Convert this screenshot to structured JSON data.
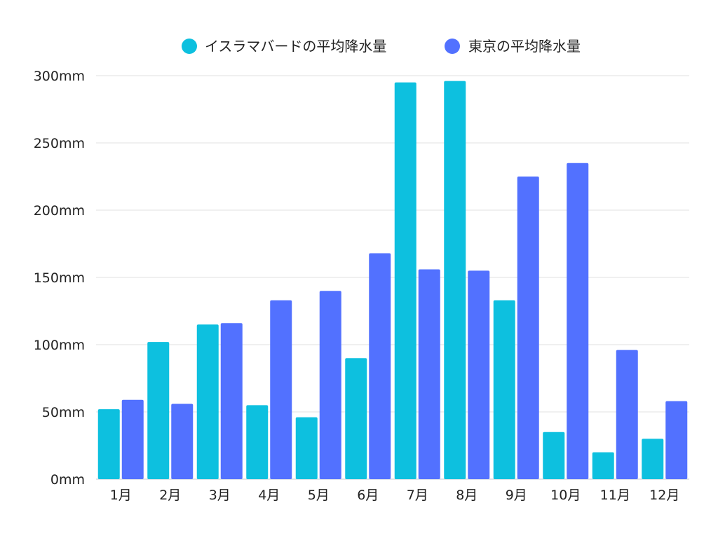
{
  "chart_data": {
    "type": "bar",
    "title": "",
    "xlabel": "",
    "ylabel": "",
    "categories": [
      "1月",
      "2月",
      "3月",
      "4月",
      "5月",
      "6月",
      "7月",
      "8月",
      "9月",
      "10月",
      "11月",
      "12月"
    ],
    "series": [
      {
        "name": "イスラマバードの平均降水量",
        "color": "#0dc0df",
        "values": [
          52,
          102,
          115,
          55,
          46,
          90,
          295,
          296,
          133,
          35,
          20,
          30
        ]
      },
      {
        "name": "東京の平均降水量",
        "color": "#5271ff",
        "values": [
          59,
          56,
          116,
          133,
          140,
          168,
          156,
          155,
          225,
          235,
          96,
          58
        ]
      }
    ],
    "ylim": [
      0,
      300
    ],
    "yticks": [
      0,
      50,
      100,
      150,
      200,
      250,
      300
    ],
    "ytick_labels": [
      "0mm",
      "50mm",
      "100mm",
      "150mm",
      "200mm",
      "250mm",
      "300mm"
    ],
    "grid": true,
    "legend_position": "top-center"
  }
}
